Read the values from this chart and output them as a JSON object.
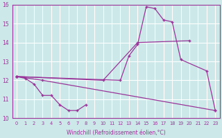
{
  "xlabel": "Windchill (Refroidissement éolien,°C)",
  "x_values": [
    0,
    1,
    2,
    3,
    4,
    5,
    6,
    7,
    8,
    9,
    10,
    11,
    12,
    13,
    14,
    15,
    16,
    17,
    18,
    19,
    20,
    21,
    22,
    23
  ],
  "line1_x": [
    0,
    1,
    2,
    3,
    4,
    5,
    6,
    7,
    8
  ],
  "line1_y": [
    12.2,
    12.1,
    11.8,
    11.2,
    11.2,
    10.7,
    10.4,
    10.4,
    10.7
  ],
  "line2_x": [
    0,
    12,
    13,
    14,
    15,
    16,
    17,
    18,
    19,
    22,
    23
  ],
  "line2_y": [
    12.2,
    12.0,
    13.3,
    13.9,
    15.9,
    15.8,
    15.2,
    15.1,
    13.1,
    12.5,
    10.4
  ],
  "line3_x": [
    0,
    10,
    14,
    20
  ],
  "line3_y": [
    12.2,
    12.0,
    14.0,
    14.1
  ],
  "line4_x": [
    0,
    3,
    23
  ],
  "line4_y": [
    12.2,
    12.0,
    10.4
  ],
  "line_color": "#993399",
  "bg_color": "#cce8e8",
  "grid_color": "#ffffff",
  "ylim": [
    10,
    16
  ],
  "xlim": [
    -0.5,
    23.5
  ],
  "yticks": [
    10,
    11,
    12,
    13,
    14,
    15,
    16
  ],
  "xticks": [
    0,
    1,
    2,
    3,
    4,
    5,
    6,
    7,
    8,
    9,
    10,
    11,
    12,
    13,
    14,
    15,
    16,
    17,
    18,
    19,
    20,
    21,
    22,
    23
  ]
}
